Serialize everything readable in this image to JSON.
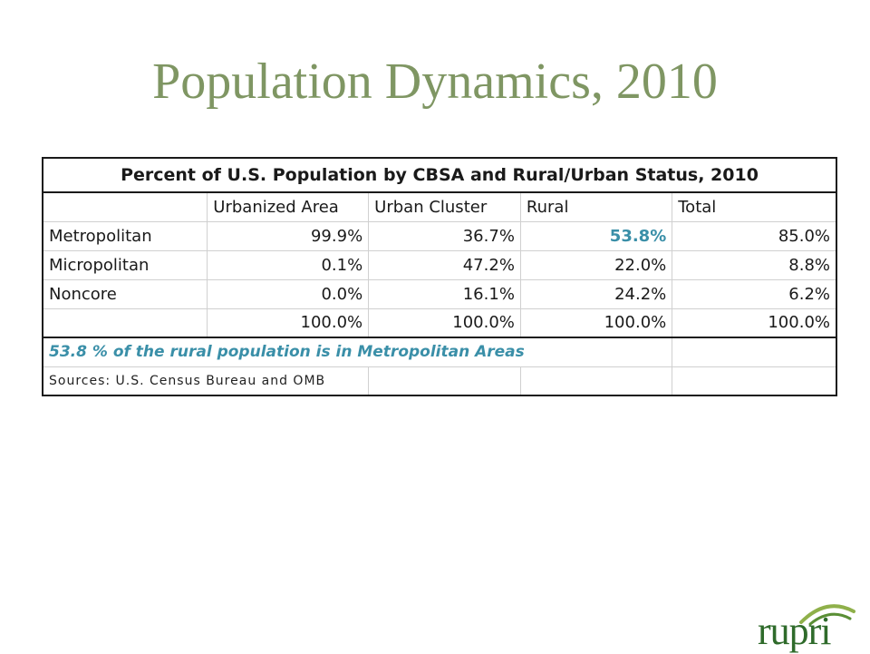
{
  "title": "Population Dynamics, 2010",
  "table": {
    "caption": "Percent of U.S. Population by CBSA and Rural/Urban Status, 2010",
    "headers": [
      "",
      "Urbanized Area",
      "Urban Cluster",
      "Rural",
      "Total"
    ],
    "rows": [
      {
        "label": "Metropolitan",
        "values": [
          "99.9%",
          "36.7%",
          "53.8%",
          "85.0%"
        ]
      },
      {
        "label": "Micropolitan",
        "values": [
          "0.1%",
          "47.2%",
          "22.0%",
          "8.8%"
        ]
      },
      {
        "label": "Noncore",
        "values": [
          "0.0%",
          "16.1%",
          "24.2%",
          "6.2%"
        ]
      },
      {
        "label": "",
        "values": [
          "100.0%",
          "100.0%",
          "100.0%",
          "100.0%"
        ]
      }
    ],
    "note": "53.8 % of the rural population is in Metropolitan Areas",
    "source": "Sources: U.S. Census Bureau and OMB",
    "highlight_color": "#3a8fa8"
  },
  "logo": {
    "text": "rupri",
    "color": "#2f6b2b"
  },
  "colors": {
    "title": "#7f9663"
  }
}
